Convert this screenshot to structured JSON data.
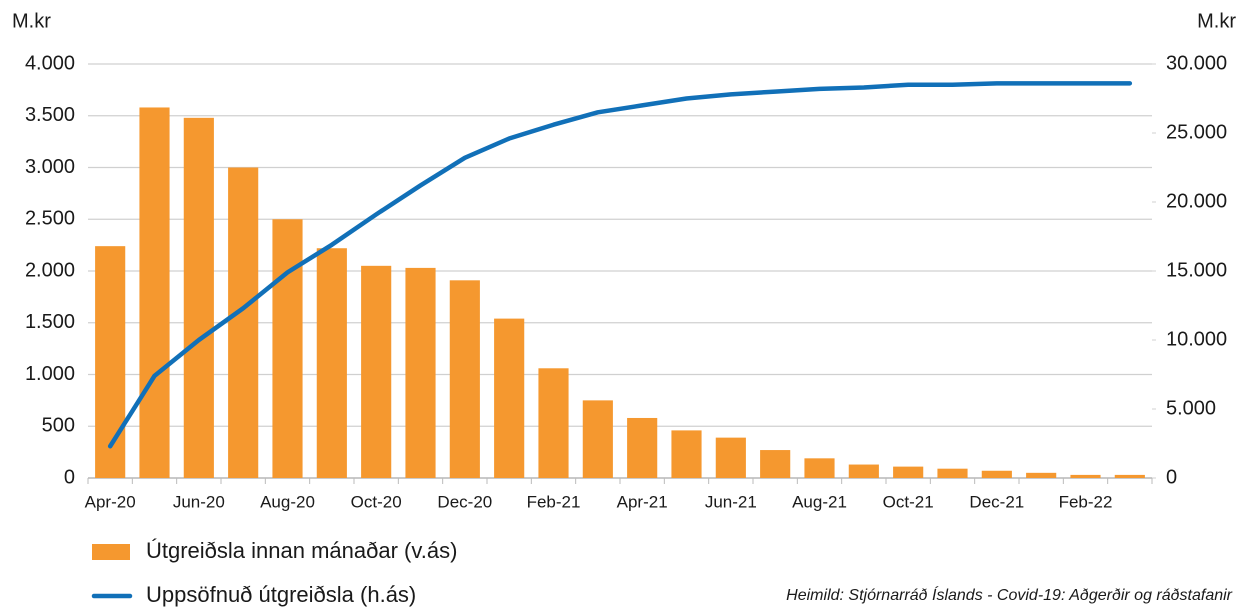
{
  "chart_data": {
    "type": "bar-line",
    "y_axis_label": "M.kr",
    "y2_axis_label": "M.kr",
    "source": "Heimild: Stjórnarráð Íslands - Covid-19: Aðgerðir og ráðstafanir",
    "categories": [
      "Apr-20",
      null,
      "Jun-20",
      null,
      "Aug-20",
      null,
      "Oct-20",
      null,
      "Dec-20",
      null,
      "Feb-21",
      null,
      "Apr-21",
      null,
      "Jun-21",
      null,
      "Aug-21",
      null,
      "Oct-21",
      null,
      "Dec-21",
      null,
      "Feb-22",
      null
    ],
    "series": [
      {
        "name": "Útgreiðsla innan mánaðar (v.ás)",
        "type": "bar",
        "axis": "y",
        "color": "#f5982f",
        "values": [
          2240,
          3580,
          3480,
          3000,
          2500,
          2220,
          2050,
          2030,
          1910,
          1540,
          1060,
          750,
          580,
          460,
          390,
          270,
          190,
          130,
          110,
          90,
          70,
          50,
          30,
          30
        ]
      },
      {
        "name": "Uppsöfnuð útgreiðsla (h.ás)",
        "type": "line",
        "axis": "y2",
        "color": "#1170b8",
        "values": [
          2300,
          7400,
          10000,
          12300,
          14900,
          16900,
          19100,
          21200,
          23200,
          24600,
          25600,
          26500,
          27000,
          27500,
          27800,
          28000,
          28200,
          28300,
          28500,
          28500,
          28600,
          28600,
          28600,
          28600
        ]
      }
    ],
    "ylim": [
      0,
      4000
    ],
    "yticks": [
      0,
      500,
      {
        "value": 1000,
        "label": "1.000"
      },
      {
        "value": 1500,
        "label": "1.500"
      },
      {
        "value": 2000,
        "label": "2.000"
      },
      {
        "value": 2500,
        "label": "2.500"
      },
      {
        "value": 3000,
        "label": "3.000"
      },
      {
        "value": 3500,
        "label": "3.500"
      },
      {
        "value": 4000,
        "label": "4.000"
      }
    ],
    "y2lim": [
      0,
      30000
    ],
    "y2ticks": [
      0,
      {
        "value": 5000,
        "label": "5.000"
      },
      {
        "value": 10000,
        "label": "10.000"
      },
      {
        "value": 15000,
        "label": "15.000"
      },
      {
        "value": 20000,
        "label": "20.000"
      },
      {
        "value": 25000,
        "label": "25.000"
      },
      {
        "value": 30000,
        "label": "30.000"
      }
    ],
    "grid": true,
    "legend": "bottom-left"
  }
}
